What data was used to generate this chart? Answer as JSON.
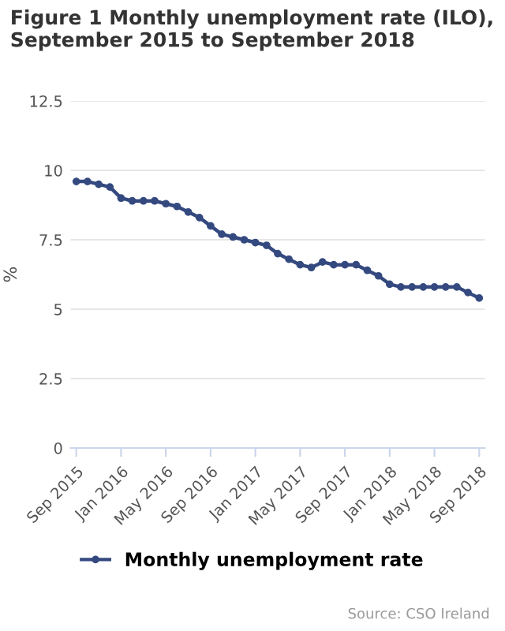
{
  "chart_data": {
    "type": "line",
    "title": "Figure 1 Monthly unemployment rate (ILO), September 2015 to September 2018",
    "ylabel": "%",
    "categories": [
      "Sep 2015",
      null,
      null,
      null,
      "Jan 2016",
      null,
      null,
      null,
      "May 2016",
      null,
      null,
      null,
      "Sep 2016",
      null,
      null,
      null,
      "Jan 2017",
      null,
      null,
      null,
      "May 2017",
      null,
      null,
      null,
      "Sep 2017",
      null,
      null,
      null,
      "Jan 2018",
      null,
      null,
      null,
      "May 2018",
      null,
      null,
      null,
      "Sep 2018"
    ],
    "series": [
      {
        "name": "Monthly unemployment rate",
        "color": "#34497f",
        "values": [
          9.6,
          9.6,
          9.5,
          9.4,
          9.0,
          8.9,
          8.9,
          8.9,
          8.8,
          8.7,
          8.5,
          8.3,
          8.0,
          7.7,
          7.6,
          7.5,
          7.4,
          7.3,
          7.0,
          6.8,
          6.6,
          6.5,
          6.7,
          6.6,
          6.6,
          6.6,
          6.4,
          6.2,
          5.9,
          5.8,
          5.8,
          5.8,
          5.8,
          5.8,
          5.8,
          5.6,
          5.4
        ]
      }
    ],
    "ylim": [
      0,
      12.5
    ],
    "yticks": [
      0,
      2.5,
      5,
      7.5,
      10,
      12.5
    ],
    "grid": "y",
    "legend": "bottom",
    "marker": "circle",
    "line_style": "solid",
    "annotations": [
      "Source: CSO Ireland"
    ]
  }
}
